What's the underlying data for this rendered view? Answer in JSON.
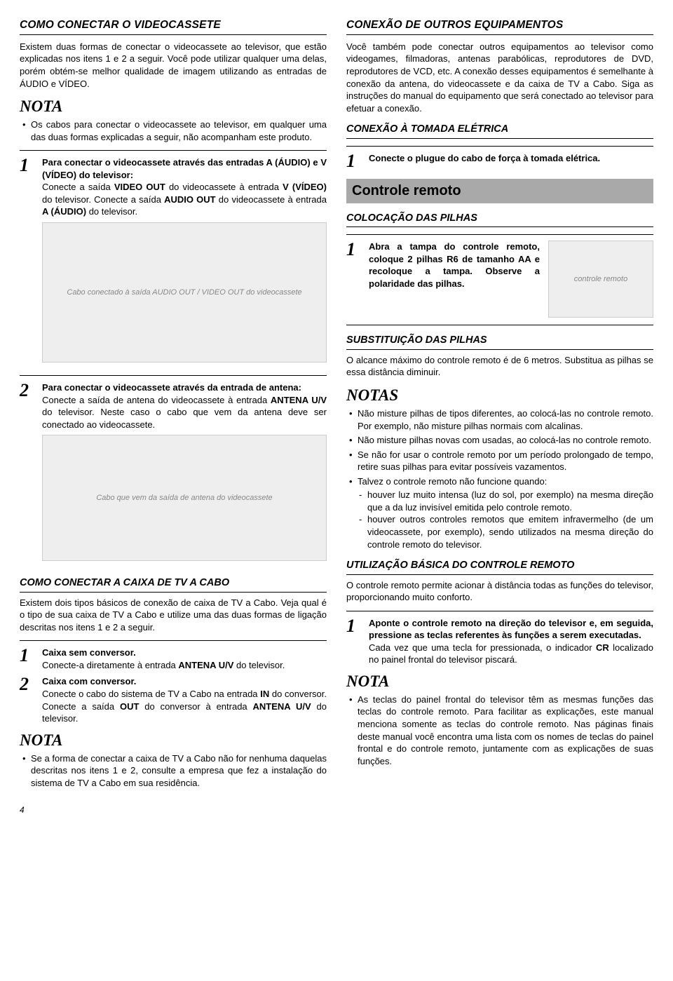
{
  "left": {
    "h_vcr": "COMO CONECTAR O VIDEOCASSETE",
    "p_vcr_intro": "Existem duas formas de conectar o videocassete ao televisor, que estão explicadas nos itens 1 e 2 a seguir. Você pode utilizar qualquer uma delas, porém obtém-se melhor qualidade de imagem utilizando as entradas de ÁUDIO e VÍDEO.",
    "nota1_label": "NOTA",
    "nota1_item": "Os cabos para conectar o videocassete ao televisor, em qualquer uma das duas formas explicadas a seguir, não acompanham este produto.",
    "step1_num": "1",
    "step1_lead": "Para conectar o videocassete através das entradas A (ÁUDIO) e V (VÍDEO) do televisor:",
    "step1_body_a": "Conecte a saída ",
    "step1_body_b": "VIDEO OUT",
    "step1_body_c": " do videocassete à entrada ",
    "step1_body_d": "V (VÍDEO)",
    "step1_body_e": " do televisor. Conecte a saída ",
    "step1_body_f": "AUDIO OUT",
    "step1_body_g": " do videocassete à entrada ",
    "step1_body_h": "A (ÁUDIO)",
    "step1_body_i": " do televisor.",
    "img1_alt": "Cabo conectado à saída AUDIO OUT / VIDEO OUT do videocassete",
    "step2_num": "2",
    "step2_lead": "Para conectar o videocassete através da entrada de antena:",
    "step2_body_a": "Conecte a saída de antena do videocassete à entrada ",
    "step2_body_b": "ANTENA U/V",
    "step2_body_c": " do televisor. Neste caso o cabo que vem da antena deve ser conectado ao videocassete.",
    "img2_alt": "Cabo que vem da saída de antena do videocassete",
    "h_cabo": "COMO CONECTAR A CAIXA DE TV A CABO",
    "p_cabo_intro": "Existem dois tipos básicos de conexão de caixa de TV a Cabo. Veja qual é o tipo de sua caixa de TV a Cabo e utilize uma das duas formas de ligação descritas nos itens 1 e 2 a seguir.",
    "cabo1_num": "1",
    "cabo1_lead": "Caixa sem conversor.",
    "cabo1_body_a": "Conecte-a diretamente à entrada ",
    "cabo1_body_b": "ANTENA U/V",
    "cabo1_body_c": " do televisor.",
    "cabo2_num": "2",
    "cabo2_lead": "Caixa com conversor.",
    "cabo2_body_a": "Conecte o cabo do sistema de TV a Cabo na entrada ",
    "cabo2_body_b": "IN",
    "cabo2_body_c": " do conversor. Conecte a saída ",
    "cabo2_body_d": "OUT",
    "cabo2_body_e": " do conversor à entrada ",
    "cabo2_body_f": "ANTENA U/V",
    "cabo2_body_g": " do televisor.",
    "nota2_label": "NOTA",
    "nota2_item": "Se a forma de conectar a caixa de TV a Cabo não for nenhuma daquelas descritas nos itens 1 e 2, consulte a empresa que fez a instalação do sistema de TV a Cabo em sua residência."
  },
  "right": {
    "h_outros": "CONEXÃO DE OUTROS EQUIPAMENTOS",
    "p_outros": "Você também pode conectar outros equipamentos ao televisor como videogames, filmadoras, antenas parabólicas, reprodutores de DVD, reprodutores de VCD, etc. A conexão desses equipamentos é semelhante à conexão da antena, do videocassete e da caixa de TV a Cabo. Siga as instruções do manual do equipamento que será conectado ao televisor para efetuar a conexão.",
    "h_tomada": "CONEXÃO À TOMADA ELÉTRICA",
    "tomada_num": "1",
    "tomada_lead": "Conecte o plugue do cabo de força à tomada elétrica.",
    "bar_remoto": "Controle remoto",
    "h_coloc": "COLOCAÇÃO DAS PILHAS",
    "pilha_num": "1",
    "pilha_lead": "Abra a tampa do controle remoto, coloque 2 pilhas R6 de tamanho AA e recoloque a tampa. Observe a polaridade das pilhas.",
    "img_remote_alt": "controle remoto",
    "h_subst": "SUBSTITUIÇÃO DAS PILHAS",
    "p_subst": "O alcance máximo do controle remoto é de 6 metros. Substitua as pilhas se essa distância diminuir.",
    "notas_label": "NOTAS",
    "notas_items": [
      "Não misture pilhas de tipos diferentes, ao colocá-las no controle remoto. Por exemplo, não misture pilhas normais com alcalinas.",
      "Não misture pilhas novas com usadas, ao colocá-las no controle remoto.",
      "Se não for usar o controle remoto por um período prolongado de tempo, retire suas pilhas para evitar possíveis vazamentos.",
      "Talvez o controle remoto não funcione quando:"
    ],
    "notas_sub": [
      "houver luz muito intensa (luz do sol, por exemplo) na mesma direção que a da luz invisível emitida pelo controle remoto.",
      "houver outros controles remotos que emitem infravermelho (de um videocassete, por exemplo), sendo utilizados na mesma direção do controle remoto do televisor."
    ],
    "h_util": "UTILIZAÇÃO BÁSICA DO CONTROLE REMOTO",
    "p_util": "O controle remoto permite acionar à distância todas as funções do televisor, proporcionando muito conforto.",
    "util_num": "1",
    "util_lead": "Aponte o controle remoto na direção do televisor e, em seguida, pressione as teclas referentes às funções a serem executadas.",
    "util_body_a": "Cada vez que uma tecla for pressionada, o indicador ",
    "util_body_b": "CR",
    "util_body_c": " localizado no painel frontal do televisor piscará.",
    "nota3_label": "NOTA",
    "nota3_item": "As teclas do painel frontal do televisor têm as mesmas funções das teclas do controle remoto. Para facilitar as explicações, este manual menciona somente as teclas do controle remoto. Nas páginas finais deste manual você encontra uma lista com os nomes de teclas do painel frontal e do controle remoto, juntamente com as explicações de suas funções."
  },
  "page_number": "4"
}
